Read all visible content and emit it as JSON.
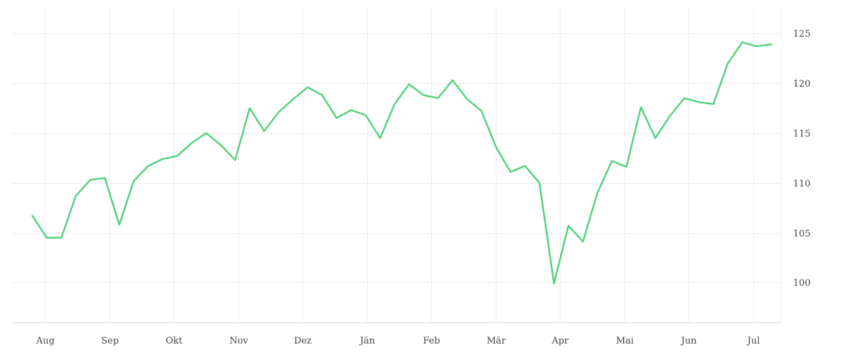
{
  "chart_data": {
    "type": "line",
    "title": "",
    "xlabel": "",
    "ylabel": "",
    "x_tick_labels": [
      "Aug",
      "Sep",
      "Okt",
      "Nov",
      "Dez",
      "Jän",
      "Feb",
      "Mär",
      "Apr",
      "Mai",
      "Jun",
      "Jul"
    ],
    "y_ticks": [
      100,
      105,
      110,
      115,
      120,
      125
    ],
    "ylim": [
      96,
      127.5
    ],
    "grid": true,
    "legend": "none",
    "y_axis_position": "right",
    "series": [
      {
        "color": "#55d17e",
        "values": [
          106.7,
          104.5,
          104.5,
          108.7,
          110.3,
          110.5,
          105.8,
          110.2,
          111.7,
          112.4,
          112.7,
          114.0,
          115.0,
          113.8,
          112.3,
          117.5,
          115.2,
          117.1,
          118.4,
          119.6,
          118.8,
          116.5,
          117.3,
          116.8,
          114.5,
          117.9,
          119.9,
          118.8,
          118.5,
          120.3,
          118.4,
          117.2,
          113.6,
          111.1,
          111.7,
          110.0,
          99.9,
          105.7,
          104.1,
          109.0,
          112.2,
          111.6,
          117.6,
          114.5,
          116.7,
          118.5,
          118.1,
          117.9,
          122.0,
          124.1,
          123.7,
          123.9
        ]
      }
    ]
  }
}
